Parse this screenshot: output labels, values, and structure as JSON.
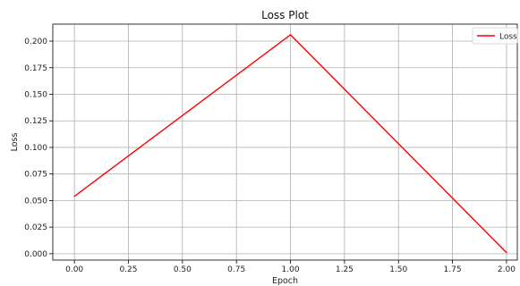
{
  "chart_data": {
    "type": "line",
    "title": "Loss Plot",
    "xlabel": "Epoch",
    "ylabel": "Loss",
    "xlim": [
      -0.1,
      2.05
    ],
    "ylim": [
      -0.006,
      0.216
    ],
    "xticks": [
      0.0,
      0.25,
      0.5,
      0.75,
      1.0,
      1.25,
      1.5,
      1.75,
      2.0
    ],
    "xtick_labels": [
      "0.00",
      "0.25",
      "0.50",
      "0.75",
      "1.00",
      "1.25",
      "1.50",
      "1.75",
      "2.00"
    ],
    "yticks": [
      0.0,
      0.025,
      0.05,
      0.075,
      0.1,
      0.125,
      0.15,
      0.175,
      0.2
    ],
    "ytick_labels": [
      "0.000",
      "0.025",
      "0.050",
      "0.075",
      "0.100",
      "0.125",
      "0.150",
      "0.175",
      "0.200"
    ],
    "grid": true,
    "legend_position": "top-right",
    "series": [
      {
        "name": "Loss",
        "color": "#ff0000",
        "x": [
          0,
          1,
          2
        ],
        "y": [
          0.054,
          0.206,
          0.001
        ]
      }
    ]
  }
}
